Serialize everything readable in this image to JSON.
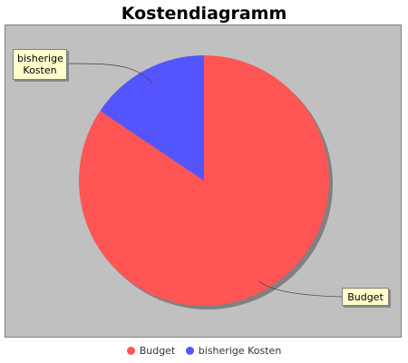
{
  "chart_data": {
    "type": "pie",
    "title": "Kostendiagramm",
    "categories": [
      "Budget",
      "bisherige Kosten"
    ],
    "values": [
      84.4,
      15.6
    ],
    "colors": [
      "#ff5555",
      "#5555ff"
    ],
    "plot_background": "#c0c0c0",
    "label_background": "#ffffcc",
    "legend_position": "bottom",
    "labels": {
      "kosten_line1": "bisherige",
      "kosten_line2": "Kosten",
      "budget": "Budget"
    },
    "legend": {
      "budget": "Budget",
      "kosten": "bisherige Kosten"
    }
  }
}
